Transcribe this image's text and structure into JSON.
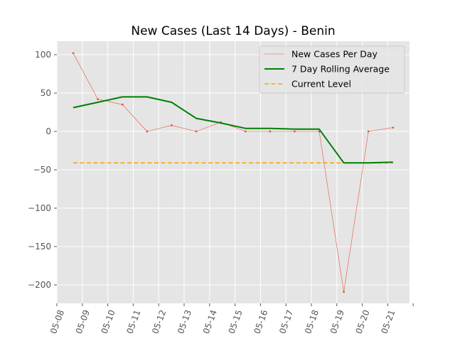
{
  "chart_data": {
    "type": "line",
    "title": "New Cases (Last 14 Days) - Benin",
    "xlabel": "",
    "ylabel": "",
    "x": [
      "05-08",
      "05-09",
      "05-10",
      "05-11",
      "05-12",
      "05-13",
      "05-14",
      "05-15",
      "05-16",
      "05-17",
      "05-18",
      "05-19",
      "05-20",
      "05-21"
    ],
    "x_ticks": [
      "05-08",
      "05-09",
      "05-10",
      "05-11",
      "05-12",
      "05-13",
      "05-14",
      "05-15",
      "05-16",
      "05-17",
      "05-18",
      "05-19",
      "05-20",
      "05-21"
    ],
    "y_ticks": [
      100,
      50,
      0,
      -50,
      -100,
      -150,
      -200
    ],
    "y_tick_labels": [
      "100",
      "50",
      "0",
      "−50",
      "−100",
      "−150",
      "−200"
    ],
    "ylim": [
      -225,
      115
    ],
    "grid": true,
    "legend_position": "top-right",
    "series": [
      {
        "name": "New Cases Per Day",
        "color": "#e8543a",
        "style": "thin-line-with-markers",
        "values": [
          102,
          42,
          35,
          0,
          8,
          0,
          12,
          0,
          0,
          0,
          0,
          -209,
          0,
          5
        ]
      },
      {
        "name": "7 Day Rolling Average",
        "color": "#008000",
        "style": "thick-line",
        "values": [
          31,
          38,
          45,
          45,
          38,
          17,
          11,
          4,
          4,
          3,
          3,
          -41,
          -41,
          -40
        ]
      },
      {
        "name": "Current Level",
        "color": "#ffa500",
        "style": "dashed",
        "values": [
          -41,
          -41,
          -41,
          -41,
          -41,
          -41,
          -41,
          -41,
          -41,
          -41,
          -41,
          -41,
          -41,
          -41
        ]
      }
    ]
  }
}
